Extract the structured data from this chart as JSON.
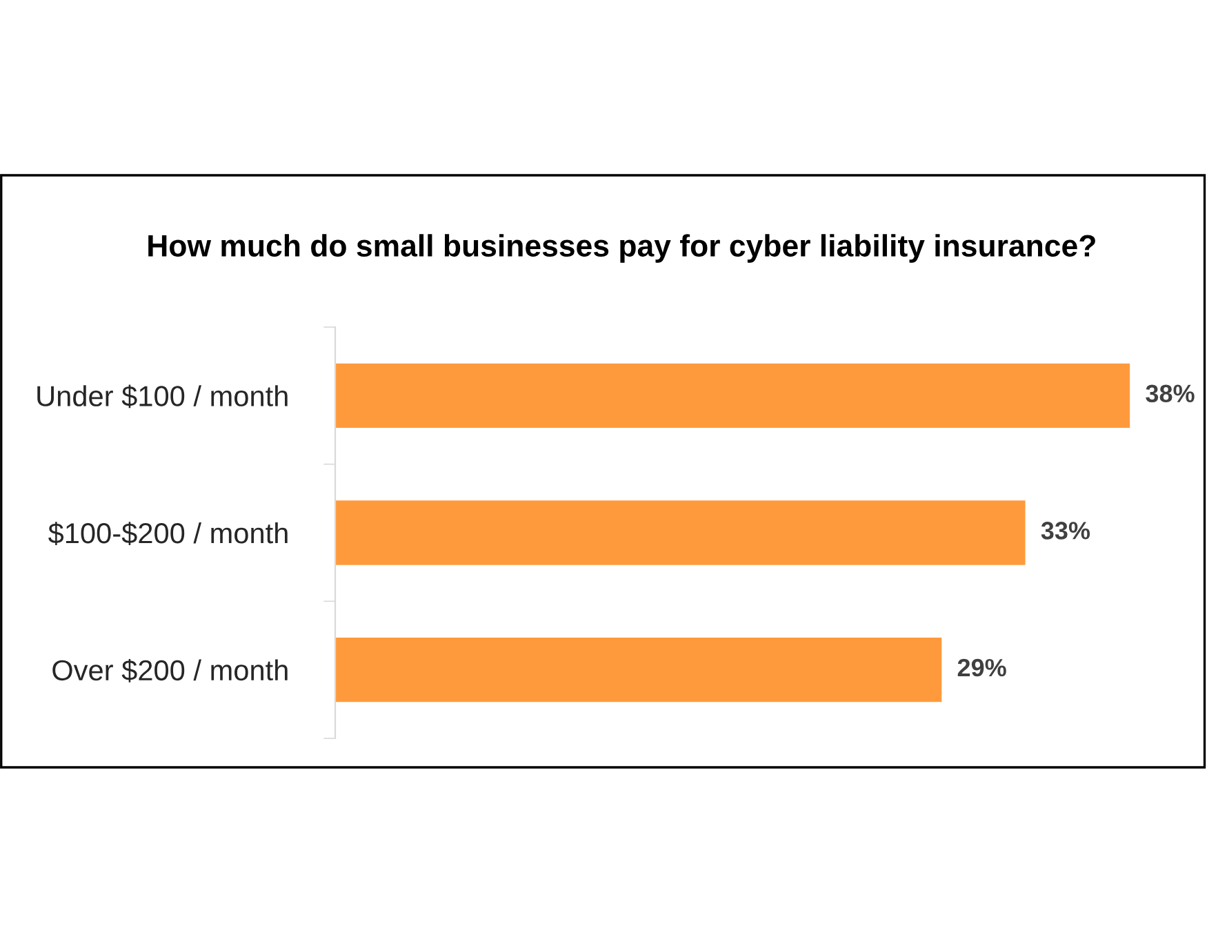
{
  "chart_data": {
    "type": "bar",
    "orientation": "horizontal",
    "title": "How much do small businesses pay for cyber liability insurance?",
    "categories": [
      "Under $100 / month",
      "$100-$200 / month",
      "Over $200 / month"
    ],
    "values": [
      38,
      33,
      29
    ],
    "value_labels": [
      "38%",
      "33%",
      "29%"
    ],
    "color": "#ff9a3c",
    "grid": false,
    "legend": false
  }
}
